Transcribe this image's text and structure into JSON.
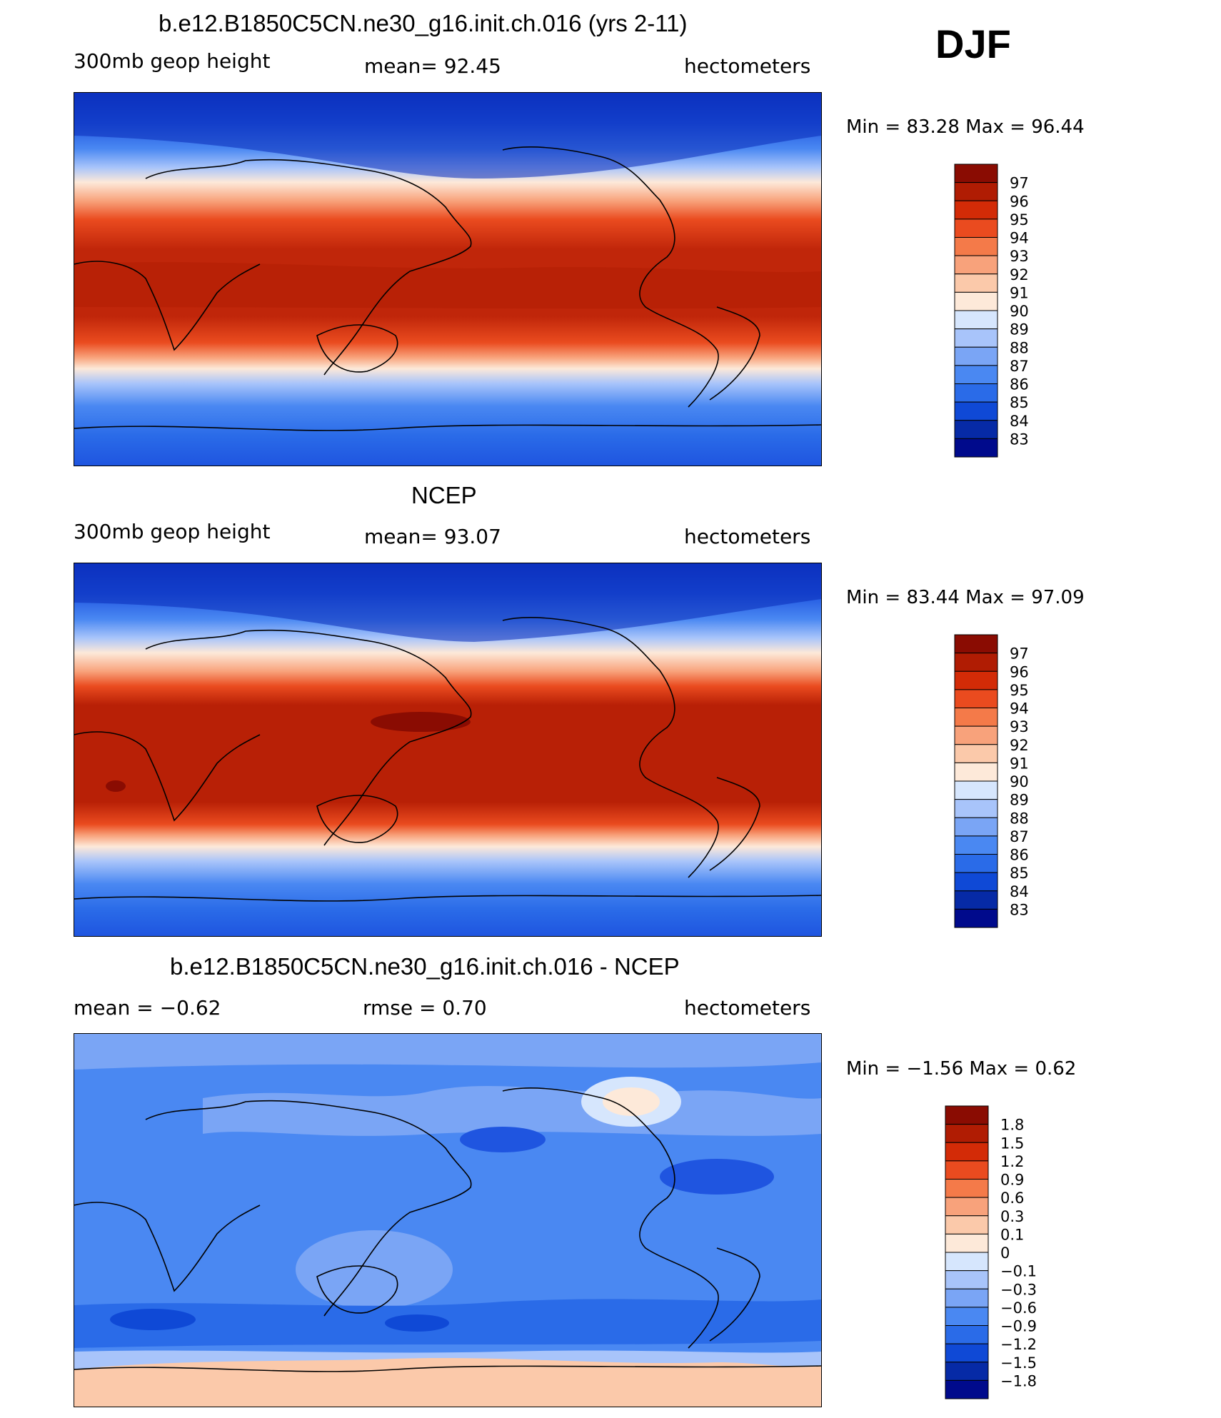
{
  "season": "DJF",
  "colors": {
    "field_colorbar": [
      "#000a8c",
      "#062aa6",
      "#0f49d6",
      "#2a6be8",
      "#4a88f2",
      "#7aa5f5",
      "#a8c4fa",
      "#d6e6fd",
      "#fde9d9",
      "#fbc9aa",
      "#f8a27b",
      "#f47a49",
      "#ea4b1f",
      "#d32b07",
      "#b01c03",
      "#8a0c02"
    ],
    "diff_colorbar": [
      "#000a8c",
      "#062aa6",
      "#0f49d6",
      "#2a6be8",
      "#4a88f2",
      "#7aa5f5",
      "#a8c4fa",
      "#d6e6fd",
      "#fde9d9",
      "#fbc9aa",
      "#f8a27b",
      "#f47a49",
      "#ea4b1f",
      "#d32b07",
      "#b01c03",
      "#8a0c02"
    ]
  },
  "panels": [
    {
      "title": "b.e12.B1850C5CN.ne30_g16.init.ch.016 (yrs 2-11)",
      "left_label": "300mb geop height",
      "mid_label": "mean=   92.45",
      "right_label": "hectometers",
      "minmax": "Min =   83.28  Max =   96.44",
      "colorbar_labels": [
        "97",
        "96",
        "95",
        "94",
        "93",
        "92",
        "91",
        "90",
        "89",
        "88",
        "87",
        "86",
        "85",
        "84",
        "83"
      ]
    },
    {
      "title": "NCEP",
      "left_label": "300mb geop height",
      "mid_label": "mean=   93.07",
      "right_label": "hectometers",
      "minmax": "Min =   83.44  Max =   97.09",
      "colorbar_labels": [
        "97",
        "96",
        "95",
        "94",
        "93",
        "92",
        "91",
        "90",
        "89",
        "88",
        "87",
        "86",
        "85",
        "84",
        "83"
      ]
    },
    {
      "title": "b.e12.B1850C5CN.ne30_g16.init.ch.016 - NCEP",
      "left_label": "mean =   −0.62",
      "mid_label": "rmse =     0.70",
      "right_label": "hectometers",
      "minmax": "Min =   −1.56  Max =     0.62",
      "colorbar_labels": [
        "1.8",
        "1.5",
        "1.2",
        "0.9",
        "0.6",
        "0.3",
        "0.1",
        "0",
        "−0.1",
        "−0.3",
        "−0.6",
        "−0.9",
        "−1.2",
        "−1.5",
        "−1.8"
      ]
    }
  ],
  "chart_data": [
    {
      "type": "heatmap",
      "title": "b.e12.B1850C5CN.ne30_g16.init.ch.016 (yrs 2-11)",
      "variable": "300mb geop height",
      "units": "hectometers",
      "mean": 92.45,
      "min": 83.28,
      "max": 96.44,
      "levels": [
        83,
        84,
        85,
        86,
        87,
        88,
        89,
        90,
        91,
        92,
        93,
        94,
        95,
        96,
        97
      ]
    },
    {
      "type": "heatmap",
      "title": "NCEP",
      "variable": "300mb geop height",
      "units": "hectometers",
      "mean": 93.07,
      "min": 83.44,
      "max": 97.09,
      "levels": [
        83,
        84,
        85,
        86,
        87,
        88,
        89,
        90,
        91,
        92,
        93,
        94,
        95,
        96,
        97
      ]
    },
    {
      "type": "heatmap",
      "title": "b.e12.B1850C5CN.ne30_g16.init.ch.016 - NCEP",
      "units": "hectometers",
      "mean": -0.62,
      "rmse": 0.7,
      "min": -1.56,
      "max": 0.62,
      "levels": [
        -1.8,
        -1.5,
        -1.2,
        -0.9,
        -0.6,
        -0.3,
        -0.1,
        0,
        0.1,
        0.3,
        0.6,
        0.9,
        1.2,
        1.5,
        1.8
      ]
    }
  ]
}
